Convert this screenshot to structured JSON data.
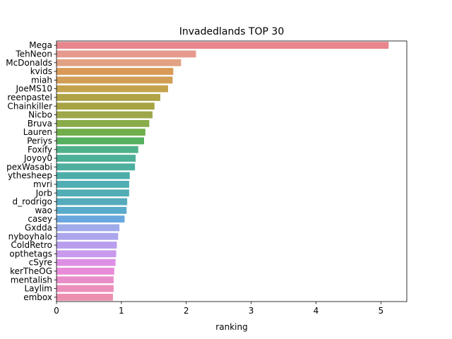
{
  "chart_data": {
    "type": "bar",
    "orientation": "horizontal",
    "title": "Invadedlands TOP 30",
    "xlabel": "ranking",
    "ylabel": "",
    "xlim": [
      0,
      5.4
    ],
    "xticks": [
      0,
      1,
      2,
      3,
      4,
      5
    ],
    "grid": false,
    "categories": [
      "Mega",
      "TehNeon",
      "McDonalds",
      "kvids",
      "miah",
      "JoeMS10",
      "reenpastel",
      "Chainkiller",
      "Nicbo",
      "Bruva",
      "Lauren",
      "Periys",
      "Foxify",
      "Joyoy0",
      "pexWasabi",
      "ythesheep",
      "mvri",
      "Jorb",
      "d_rodrigo",
      "wao",
      "casey",
      "Gxdda",
      "nyboyhalo",
      "ColdRetro",
      "opthetags",
      "cSyre",
      "kerTheOG",
      "mentalish",
      "Laylim",
      "embox"
    ],
    "values": [
      5.12,
      2.15,
      1.92,
      1.8,
      1.79,
      1.72,
      1.6,
      1.51,
      1.48,
      1.43,
      1.37,
      1.35,
      1.26,
      1.22,
      1.21,
      1.13,
      1.12,
      1.12,
      1.09,
      1.08,
      1.05,
      0.97,
      0.95,
      0.93,
      0.92,
      0.91,
      0.89,
      0.88,
      0.88,
      0.87
    ],
    "colors": [
      "#e8858d",
      "#e69a8e",
      "#e1a183",
      "#d99a57",
      "#d29d55",
      "#c5a34d",
      "#b0a346",
      "#a8a443",
      "#9ea74a",
      "#89ab4a",
      "#6fae4a",
      "#55b15f",
      "#4fb18a",
      "#4eb097",
      "#4eae9f",
      "#4cada9",
      "#4eaeb3",
      "#51adb5",
      "#55abbd",
      "#5aaacb",
      "#6aa7df",
      "#a0abea",
      "#aca6ec",
      "#b99eed",
      "#c899ec",
      "#de8fe5",
      "#e88bd9",
      "#e98dca",
      "#eb8fbb",
      "#ec8fb0"
    ]
  }
}
